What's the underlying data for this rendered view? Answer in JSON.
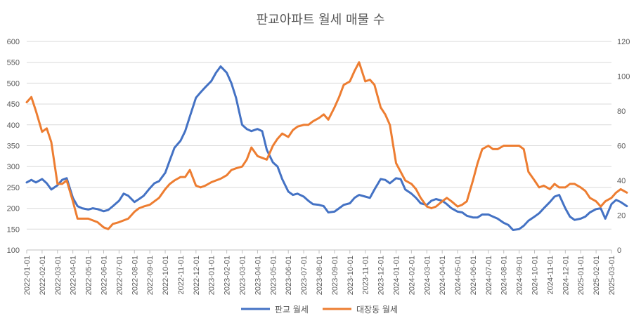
{
  "chart_data": {
    "type": "line",
    "title": "판교아파트 월세 매물 수",
    "x_tick_labels": [
      "2022-01-01",
      "2022-02-01",
      "2022-03-01",
      "2022-04-01",
      "2022-05-01",
      "2022-06-01",
      "2022-07-01",
      "2022-08-01",
      "2022-09-01",
      "2022-10-01",
      "2022-11-01",
      "2022-12-01",
      "2023-01-01",
      "2023-02-01",
      "2023-03-01",
      "2023-04-01",
      "2023-05-01",
      "2023-06-01",
      "2023-07-01",
      "2023-08-01",
      "2023-09-01",
      "2023-10-01",
      "2023-11-01",
      "2023-12-01",
      "2024-01-01",
      "2024-02-01",
      "2024-03-01",
      "2024-04-01",
      "2024-05-01",
      "2024-06-01",
      "2024-07-01",
      "2024-08-01",
      "2024-09-01",
      "2024-10-01",
      "2024-11-01",
      "2024-12-01",
      "2025-01-01",
      "2025-02-01",
      "2025-03-01"
    ],
    "y_left": {
      "min": 100,
      "max": 600,
      "ticks": [
        100,
        150,
        200,
        250,
        300,
        350,
        400,
        450,
        500,
        550,
        600
      ]
    },
    "y_right": {
      "min": 0,
      "max": 120,
      "ticks": [
        0,
        20,
        40,
        60,
        80,
        100,
        120
      ]
    },
    "grid": true,
    "legend_position": "bottom",
    "series": [
      {
        "name": "판교 월세",
        "axis": "left",
        "color": "#4472c4",
        "points": [
          [
            0,
            262
          ],
          [
            0.3,
            268
          ],
          [
            0.6,
            262
          ],
          [
            1,
            270
          ],
          [
            1.3,
            260
          ],
          [
            1.6,
            245
          ],
          [
            2,
            255
          ],
          [
            2.3,
            268
          ],
          [
            2.6,
            272
          ],
          [
            3,
            225
          ],
          [
            3.3,
            205
          ],
          [
            3.6,
            200
          ],
          [
            4,
            197
          ],
          [
            4.3,
            200
          ],
          [
            4.6,
            198
          ],
          [
            5,
            193
          ],
          [
            5.3,
            196
          ],
          [
            5.6,
            205
          ],
          [
            6,
            218
          ],
          [
            6.3,
            235
          ],
          [
            6.6,
            230
          ],
          [
            7,
            215
          ],
          [
            7.3,
            222
          ],
          [
            7.6,
            230
          ],
          [
            8,
            248
          ],
          [
            8.3,
            260
          ],
          [
            8.6,
            265
          ],
          [
            9,
            285
          ],
          [
            9.3,
            315
          ],
          [
            9.6,
            345
          ],
          [
            10,
            362
          ],
          [
            10.3,
            385
          ],
          [
            10.6,
            420
          ],
          [
            11,
            465
          ],
          [
            11.3,
            478
          ],
          [
            11.6,
            490
          ],
          [
            12,
            505
          ],
          [
            12.3,
            525
          ],
          [
            12.6,
            540
          ],
          [
            13,
            525
          ],
          [
            13.3,
            500
          ],
          [
            13.6,
            465
          ],
          [
            14,
            400
          ],
          [
            14.3,
            390
          ],
          [
            14.6,
            385
          ],
          [
            15,
            390
          ],
          [
            15.3,
            385
          ],
          [
            15.6,
            340
          ],
          [
            16,
            310
          ],
          [
            16.3,
            300
          ],
          [
            16.6,
            270
          ],
          [
            17,
            240
          ],
          [
            17.3,
            232
          ],
          [
            17.6,
            235
          ],
          [
            18,
            228
          ],
          [
            18.3,
            218
          ],
          [
            18.6,
            210
          ],
          [
            19,
            208
          ],
          [
            19.3,
            205
          ],
          [
            19.6,
            190
          ],
          [
            20,
            192
          ],
          [
            20.3,
            200
          ],
          [
            20.6,
            208
          ],
          [
            21,
            212
          ],
          [
            21.3,
            225
          ],
          [
            21.6,
            232
          ],
          [
            22,
            228
          ],
          [
            22.3,
            225
          ],
          [
            22.6,
            245
          ],
          [
            23,
            270
          ],
          [
            23.3,
            268
          ],
          [
            23.6,
            260
          ],
          [
            24,
            272
          ],
          [
            24.3,
            270
          ],
          [
            24.6,
            245
          ],
          [
            25,
            235
          ],
          [
            25.3,
            225
          ],
          [
            25.6,
            212
          ],
          [
            26,
            208
          ],
          [
            26.3,
            218
          ],
          [
            26.6,
            222
          ],
          [
            27,
            218
          ],
          [
            27.3,
            210
          ],
          [
            27.6,
            200
          ],
          [
            28,
            192
          ],
          [
            28.3,
            190
          ],
          [
            28.6,
            182
          ],
          [
            29,
            178
          ],
          [
            29.3,
            178
          ],
          [
            29.6,
            185
          ],
          [
            30,
            185
          ],
          [
            30.3,
            180
          ],
          [
            30.6,
            175
          ],
          [
            31,
            165
          ],
          [
            31.3,
            160
          ],
          [
            31.6,
            148
          ],
          [
            32,
            150
          ],
          [
            32.3,
            158
          ],
          [
            32.6,
            170
          ],
          [
            33,
            180
          ],
          [
            33.3,
            188
          ],
          [
            33.6,
            200
          ],
          [
            34,
            215
          ],
          [
            34.3,
            228
          ],
          [
            34.6,
            232
          ],
          [
            35,
            200
          ],
          [
            35.3,
            180
          ],
          [
            35.6,
            172
          ],
          [
            36,
            175
          ],
          [
            36.3,
            180
          ],
          [
            36.6,
            190
          ],
          [
            37,
            198
          ],
          [
            37.3,
            200
          ],
          [
            37.6,
            175
          ],
          [
            38,
            210
          ],
          [
            38.3,
            220
          ],
          [
            38.6,
            215
          ],
          [
            39,
            205
          ]
        ]
      },
      {
        "name": "대장동 월세",
        "axis": "right",
        "color": "#ed7d31",
        "points": [
          [
            0,
            85
          ],
          [
            0.3,
            88
          ],
          [
            0.6,
            80
          ],
          [
            1,
            68
          ],
          [
            1.3,
            70
          ],
          [
            1.6,
            62
          ],
          [
            2,
            38
          ],
          [
            2.3,
            38
          ],
          [
            2.6,
            40
          ],
          [
            3,
            28
          ],
          [
            3.3,
            18
          ],
          [
            3.6,
            18
          ],
          [
            4,
            18
          ],
          [
            4.3,
            17
          ],
          [
            4.6,
            16
          ],
          [
            5,
            13
          ],
          [
            5.3,
            12
          ],
          [
            5.6,
            15
          ],
          [
            6,
            16
          ],
          [
            6.3,
            17
          ],
          [
            6.6,
            18
          ],
          [
            7,
            22
          ],
          [
            7.3,
            24
          ],
          [
            7.6,
            25
          ],
          [
            8,
            26
          ],
          [
            8.3,
            28
          ],
          [
            8.6,
            30
          ],
          [
            9,
            35
          ],
          [
            9.3,
            38
          ],
          [
            9.6,
            40
          ],
          [
            10,
            42
          ],
          [
            10.3,
            42
          ],
          [
            10.6,
            46
          ],
          [
            11,
            37
          ],
          [
            11.3,
            36
          ],
          [
            11.6,
            37
          ],
          [
            12,
            39
          ],
          [
            12.3,
            40
          ],
          [
            12.6,
            41
          ],
          [
            13,
            43
          ],
          [
            13.3,
            46
          ],
          [
            13.6,
            47
          ],
          [
            14,
            48
          ],
          [
            14.3,
            52
          ],
          [
            14.6,
            59
          ],
          [
            15,
            54
          ],
          [
            15.3,
            53
          ],
          [
            15.6,
            52
          ],
          [
            16,
            60
          ],
          [
            16.3,
            64
          ],
          [
            16.6,
            67
          ],
          [
            17,
            65
          ],
          [
            17.3,
            69
          ],
          [
            17.6,
            71
          ],
          [
            18,
            72
          ],
          [
            18.3,
            72
          ],
          [
            18.6,
            74
          ],
          [
            19,
            76
          ],
          [
            19.3,
            78
          ],
          [
            19.6,
            75
          ],
          [
            20,
            82
          ],
          [
            20.3,
            88
          ],
          [
            20.6,
            95
          ],
          [
            21,
            97
          ],
          [
            21.3,
            103
          ],
          [
            21.6,
            108
          ],
          [
            22,
            97
          ],
          [
            22.3,
            98
          ],
          [
            22.6,
            95
          ],
          [
            23,
            82
          ],
          [
            23.3,
            78
          ],
          [
            23.6,
            72
          ],
          [
            24,
            50
          ],
          [
            24.3,
            45
          ],
          [
            24.6,
            40
          ],
          [
            25,
            38
          ],
          [
            25.3,
            35
          ],
          [
            25.6,
            30
          ],
          [
            26,
            25
          ],
          [
            26.3,
            24
          ],
          [
            26.6,
            25
          ],
          [
            27,
            28
          ],
          [
            27.3,
            30
          ],
          [
            27.6,
            28
          ],
          [
            28,
            25
          ],
          [
            28.3,
            26
          ],
          [
            28.6,
            28
          ],
          [
            29,
            40
          ],
          [
            29.3,
            50
          ],
          [
            29.6,
            58
          ],
          [
            30,
            60
          ],
          [
            30.3,
            58
          ],
          [
            30.6,
            58
          ],
          [
            31,
            60
          ],
          [
            31.3,
            60
          ],
          [
            31.6,
            60
          ],
          [
            32,
            60
          ],
          [
            32.3,
            58
          ],
          [
            32.6,
            45
          ],
          [
            33,
            40
          ],
          [
            33.3,
            36
          ],
          [
            33.6,
            37
          ],
          [
            34,
            35
          ],
          [
            34.3,
            38
          ],
          [
            34.6,
            36
          ],
          [
            35,
            36
          ],
          [
            35.3,
            38
          ],
          [
            35.6,
            38
          ],
          [
            36,
            36
          ],
          [
            36.3,
            34
          ],
          [
            36.6,
            30
          ],
          [
            37,
            28
          ],
          [
            37.3,
            25
          ],
          [
            37.6,
            28
          ],
          [
            38,
            30
          ],
          [
            38.3,
            33
          ],
          [
            38.6,
            35
          ],
          [
            39,
            33
          ]
        ]
      }
    ]
  }
}
